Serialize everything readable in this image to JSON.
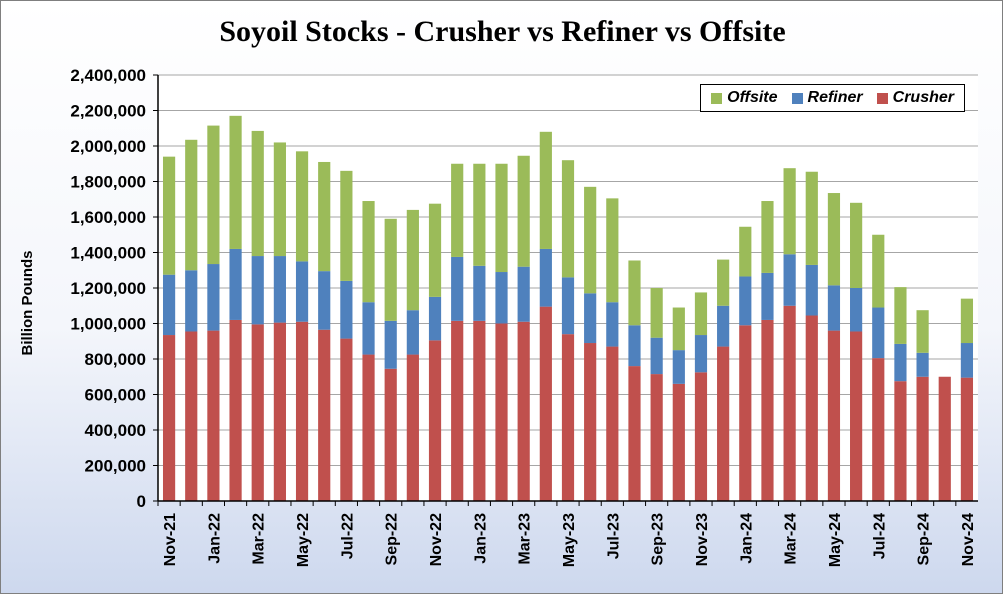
{
  "chart_data": {
    "type": "bar",
    "stacked": true,
    "title": "Soyoil Stocks - Crusher vs Refiner vs Offsite",
    "xlabel": "",
    "ylabel": "Billion Pounds",
    "ylim": [
      0,
      2400000
    ],
    "yticks": [
      0,
      200000,
      400000,
      600000,
      800000,
      1000000,
      1200000,
      1400000,
      1600000,
      1800000,
      2000000,
      2200000,
      2400000
    ],
    "ytick_labels": [
      "0",
      "200,000",
      "400,000",
      "600,000",
      "800,000",
      "1,000,000",
      "1,200,000",
      "1,400,000",
      "1,600,000",
      "1,800,000",
      "2,000,000",
      "2,200,000",
      "2,400,000"
    ],
    "grid": true,
    "legend_position": "top-right",
    "categories": [
      "Nov-21",
      "Dec-21",
      "Jan-22",
      "Feb-22",
      "Mar-22",
      "Apr-22",
      "May-22",
      "Jun-22",
      "Jul-22",
      "Aug-22",
      "Sep-22",
      "Oct-22",
      "Nov-22",
      "Dec-22",
      "Jan-23",
      "Feb-23",
      "Mar-23",
      "Apr-23",
      "May-23",
      "Jun-23",
      "Jul-23",
      "Aug-23",
      "Sep-23",
      "Oct-23",
      "Nov-23",
      "Dec-23",
      "Jan-24",
      "Feb-24",
      "Mar-24",
      "Apr-24",
      "May-24",
      "Jun-24",
      "Jul-24",
      "Aug-24",
      "Sep-24",
      "Oct-24",
      "Nov-24"
    ],
    "tick_labels_shown": [
      "Nov-21",
      "Jan-22",
      "Mar-22",
      "May-22",
      "Jul-22",
      "Sep-22",
      "Nov-22",
      "Jan-23",
      "Mar-23",
      "May-23",
      "Jul-23",
      "Sep-23",
      "Nov-23",
      "Jan-24",
      "Mar-24",
      "May-24",
      "Jul-24",
      "Sep-24",
      "Nov-24"
    ],
    "series": [
      {
        "name": "Crusher",
        "color": "#c0504d",
        "values": [
          935000,
          955000,
          960000,
          1020000,
          995000,
          1005000,
          1010000,
          965000,
          915000,
          825000,
          745000,
          825000,
          905000,
          1015000,
          1015000,
          1000000,
          1010000,
          1095000,
          940000,
          890000,
          870000,
          760000,
          715000,
          660000,
          725000,
          870000,
          990000,
          1020000,
          1100000,
          1045000,
          960000,
          955000,
          805000,
          675000,
          700000,
          700000,
          695000
        ]
      },
      {
        "name": "Refiner",
        "color": "#4f81bd",
        "values": [
          340000,
          345000,
          375000,
          400000,
          385000,
          375000,
          340000,
          330000,
          325000,
          295000,
          270000,
          250000,
          245000,
          360000,
          310000,
          290000,
          310000,
          325000,
          320000,
          280000,
          250000,
          230000,
          205000,
          190000,
          210000,
          230000,
          275000,
          265000,
          290000,
          285000,
          255000,
          245000,
          285000,
          210000,
          135000,
          0,
          195000
        ]
      },
      {
        "name": "Offsite",
        "color": "#9bbb59",
        "values": [
          665000,
          735000,
          780000,
          750000,
          705000,
          640000,
          620000,
          615000,
          620000,
          570000,
          575000,
          565000,
          525000,
          525000,
          575000,
          610000,
          625000,
          660000,
          660000,
          600000,
          585000,
          365000,
          280000,
          240000,
          240000,
          260000,
          280000,
          405000,
          485000,
          525000,
          520000,
          480000,
          410000,
          320000,
          240000,
          0,
          250000
        ]
      }
    ]
  },
  "legend": {
    "items": [
      {
        "label": "Offsite",
        "color": "#9bbb59"
      },
      {
        "label": "Refiner",
        "color": "#4f81bd"
      },
      {
        "label": "Crusher",
        "color": "#c0504d"
      }
    ]
  }
}
